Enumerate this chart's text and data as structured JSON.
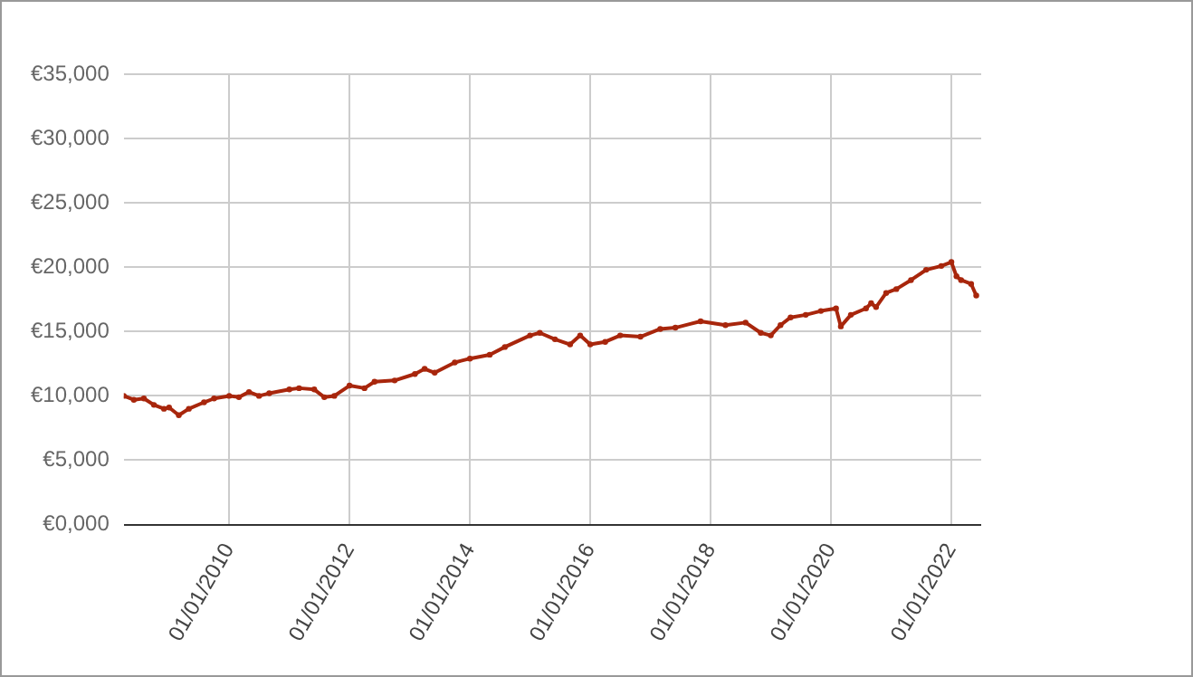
{
  "chart_data": {
    "type": "line",
    "x": [
      "2008-04",
      "2008-06",
      "2008-08",
      "2008-10",
      "2008-12",
      "2009-01",
      "2009-03",
      "2009-05",
      "2009-08",
      "2009-10",
      "2010-01",
      "2010-03",
      "2010-05",
      "2010-07",
      "2010-09",
      "2011-01",
      "2011-03",
      "2011-06",
      "2011-08",
      "2011-10",
      "2012-01",
      "2012-04",
      "2012-06",
      "2012-10",
      "2013-02",
      "2013-04",
      "2013-06",
      "2013-10",
      "2014-01",
      "2014-05",
      "2014-08",
      "2015-01",
      "2015-03",
      "2015-06",
      "2015-09",
      "2015-11",
      "2016-01",
      "2016-04",
      "2016-07",
      "2016-11",
      "2017-03",
      "2017-06",
      "2017-11",
      "2018-04",
      "2018-08",
      "2018-11",
      "2019-01",
      "2019-03",
      "2019-05",
      "2019-08",
      "2019-11",
      "2020-02",
      "2020-03",
      "2020-05",
      "2020-08",
      "2020-09",
      "2020-10",
      "2020-12",
      "2021-02",
      "2021-05",
      "2021-08",
      "2021-11",
      "2022-01",
      "2022-02",
      "2022-03",
      "2022-05",
      "2022-06"
    ],
    "values": [
      10000,
      9700,
      9800,
      9300,
      9000,
      9100,
      8500,
      9000,
      9500,
      9800,
      10000,
      9900,
      10300,
      10000,
      10200,
      10500,
      10600,
      10500,
      9900,
      10000,
      10800,
      10600,
      11100,
      11200,
      11700,
      12100,
      11800,
      12600,
      12900,
      13200,
      13800,
      14700,
      14900,
      14400,
      14000,
      14700,
      14000,
      14200,
      14700,
      14600,
      15200,
      15300,
      15800,
      15500,
      15700,
      14900,
      14700,
      15500,
      16100,
      16300,
      16600,
      16800,
      15400,
      16300,
      16800,
      17200,
      16900,
      18000,
      18300,
      19000,
      19800,
      20100,
      20400,
      19300,
      19000,
      18700,
      17800
    ],
    "color": "#a8260c",
    "xlim": [
      "2008-04",
      "2022-07"
    ],
    "xticks": [
      {
        "value": "2010-01-01",
        "label": "01/01/2010"
      },
      {
        "value": "2012-01-01",
        "label": "01/01/2012"
      },
      {
        "value": "2014-01-01",
        "label": "01/01/2014"
      },
      {
        "value": "2016-01-01",
        "label": "01/01/2016"
      },
      {
        "value": "2018-01-01",
        "label": "01/01/2018"
      },
      {
        "value": "2020-01-01",
        "label": "01/01/2020"
      },
      {
        "value": "2022-01-01",
        "label": "01/01/2022"
      }
    ],
    "ylim": [
      0,
      35000
    ],
    "yticks": [
      {
        "value": 0,
        "label": "€0,000"
      },
      {
        "value": 5000,
        "label": "€5,000"
      },
      {
        "value": 10000,
        "label": "€10,000"
      },
      {
        "value": 15000,
        "label": "€15,000"
      },
      {
        "value": 20000,
        "label": "€20,000"
      },
      {
        "value": 25000,
        "label": "€25,000"
      },
      {
        "value": 30000,
        "label": "€30,000"
      },
      {
        "value": 35000,
        "label": "€35,000"
      }
    ],
    "grid": true,
    "marker": "circle",
    "line_style": "solid"
  }
}
